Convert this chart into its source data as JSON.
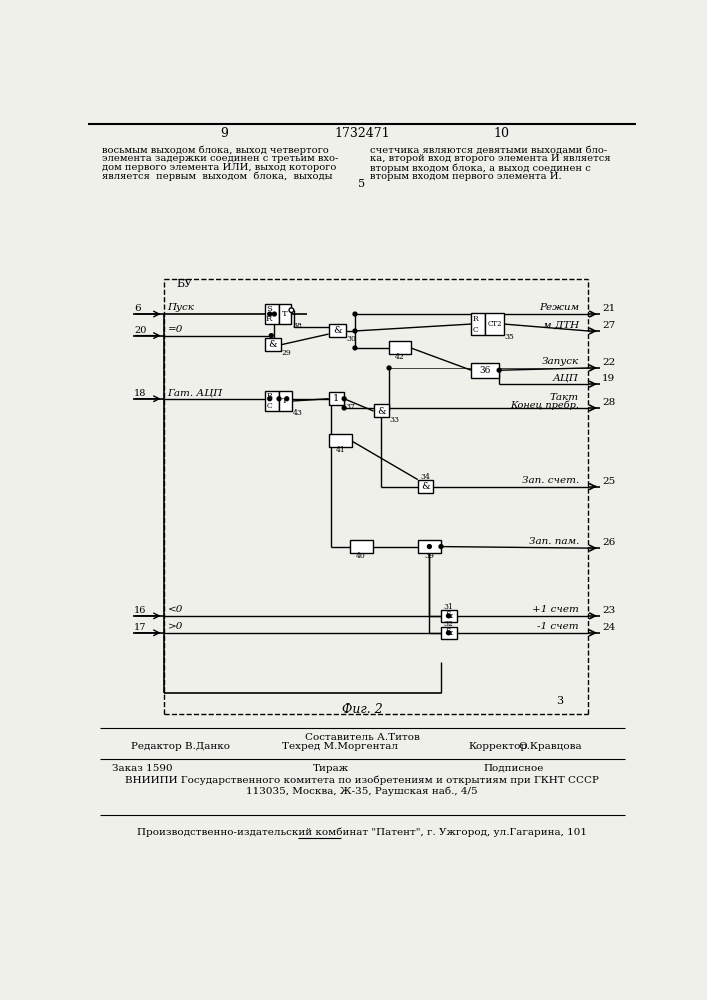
{
  "bg_color": "#f0f0eb",
  "line_color": "#000000",
  "page_num_left": "9",
  "page_num_center": "1732471",
  "page_num_right": "10",
  "text_top_left_lines": [
    "восьмым выходом блока, выход четвертого",
    "элемента задержки соединен с третьим вхо-",
    "дом первого элемента ИЛИ, выход которого",
    "является  первым  выходом  блока,  выходы"
  ],
  "text_top_right_lines": [
    "счетчика являются девятыми выходами бло-",
    "ка, второй вход второго элемента И является",
    "вторым входом блока, а выход соединен с",
    "вторым входом первого элемента И."
  ],
  "center_num": "5",
  "fig_label": "Фиг. 2",
  "bu_label": "БУ",
  "footer_editor": "Редактор В.Данко",
  "footer_composer_label": "Составитель А.Титов",
  "footer_techred": "Техред М.Моргентал",
  "footer_corrector_label": "Корректор",
  "footer_corrector_name": "О.Кравцова",
  "footer_order": "Заказ 1590",
  "footer_tirazh": "Тираж",
  "footer_podpisnoe": "Подписное",
  "footer_vniipи": "ВНИИПИ Государственного комитета по изобретениям и открытиям при ГКНТ СССР",
  "footer_address": "113035, Москва, Ж-35, Раушская наб., 4/5",
  "footer_plant": "Производственно-издательский комбинат \"Патент\", г. Ужгород, ул.Гагарина, 101"
}
